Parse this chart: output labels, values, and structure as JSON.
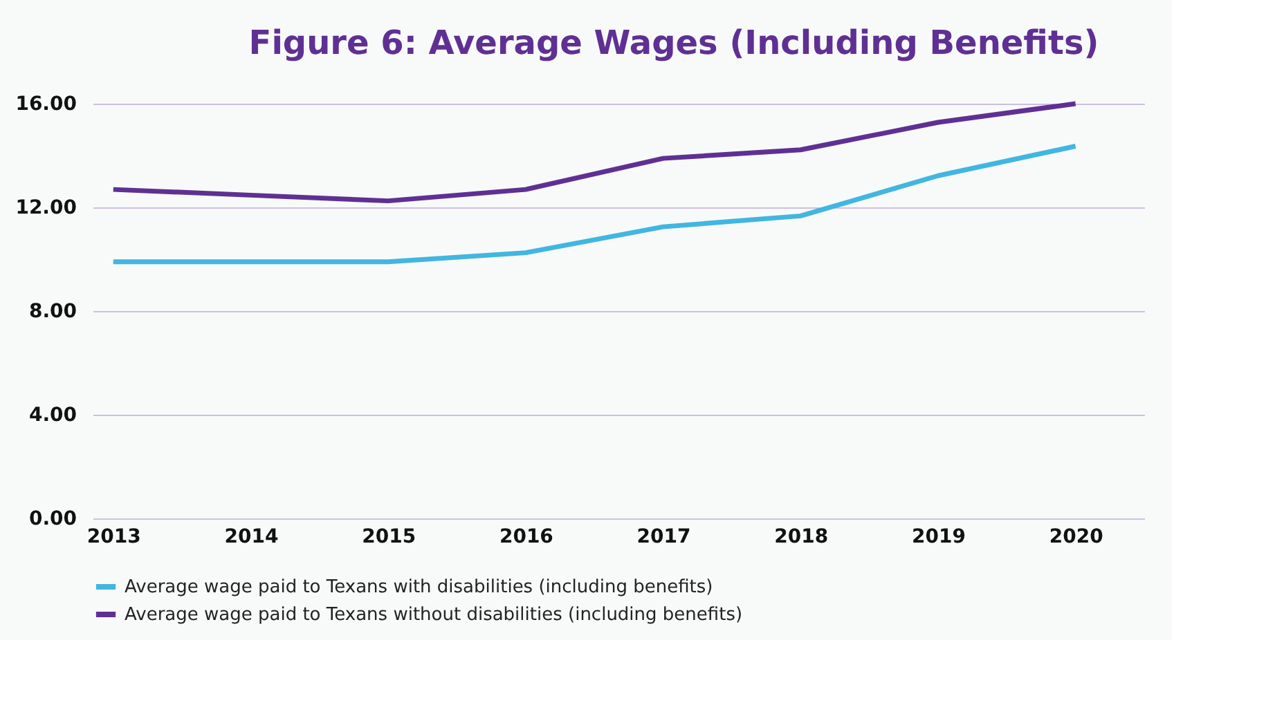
{
  "chart_data": {
    "type": "line",
    "title": "Figure 6: Average Wages (Including Benefits)",
    "categories": [
      "2013",
      "2014",
      "2015",
      "2016",
      "2017",
      "2018",
      "2019",
      "2020"
    ],
    "series": [
      {
        "name": "Average wage paid to Texans with disabilities (including benefits)",
        "color": "#41b6e0",
        "values": [
          9.9,
          9.9,
          9.9,
          10.25,
          11.25,
          11.67,
          13.22,
          14.36
        ]
      },
      {
        "name": "Average wage paid to Texans without disabilities (including benefits)",
        "color": "#5f3093",
        "values": [
          12.69,
          12.47,
          12.25,
          12.69,
          13.89,
          14.22,
          15.28,
          16.0
        ]
      }
    ],
    "ylim": [
      0,
      16
    ],
    "yticks": [
      {
        "value": 0,
        "label": "0.00"
      },
      {
        "value": 4,
        "label": "4.00"
      },
      {
        "value": 8,
        "label": "8.00"
      },
      {
        "value": 12,
        "label": "12.00"
      },
      {
        "value": 16,
        "label": "16.00"
      }
    ],
    "grid": "y",
    "legend": "bottom",
    "line_style": "solid",
    "marker": "none"
  }
}
